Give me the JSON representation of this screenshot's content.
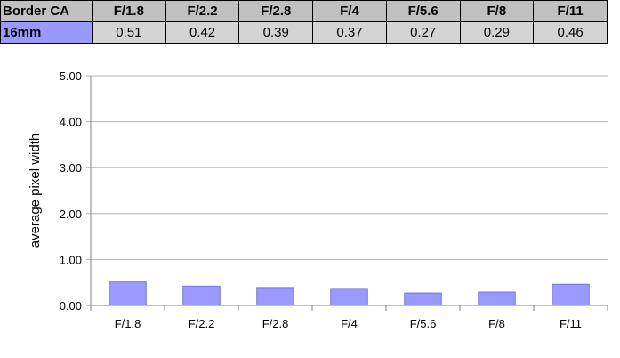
{
  "table": {
    "corner_label": "Border CA",
    "header_bg": "#c0c0c0",
    "row_label_bg": "#9999ff",
    "value_bg": "#d4d4d4",
    "columns": [
      "F/1.8",
      "F/2.2",
      "F/2.8",
      "F/4",
      "F/5.6",
      "F/8",
      "F/11"
    ],
    "rows": [
      {
        "label": "16mm",
        "values": [
          "0.51",
          "0.42",
          "0.39",
          "0.37",
          "0.27",
          "0.29",
          "0.46"
        ]
      }
    ]
  },
  "chart_data": {
    "type": "bar",
    "categories": [
      "F/1.8",
      "F/2.2",
      "F/2.8",
      "F/4",
      "F/5.6",
      "F/8",
      "F/11"
    ],
    "values": [
      0.51,
      0.42,
      0.39,
      0.37,
      0.27,
      0.29,
      0.46
    ],
    "ylabel": "average pixel width",
    "ylim": [
      0,
      5
    ],
    "yticks": [
      "0.00",
      "1.00",
      "2.00",
      "3.00",
      "4.00",
      "5.00"
    ],
    "grid": true,
    "bar_color": "#9999ff",
    "bar_edge_color": "#7777cc",
    "grid_color": "#b3b3b3"
  }
}
